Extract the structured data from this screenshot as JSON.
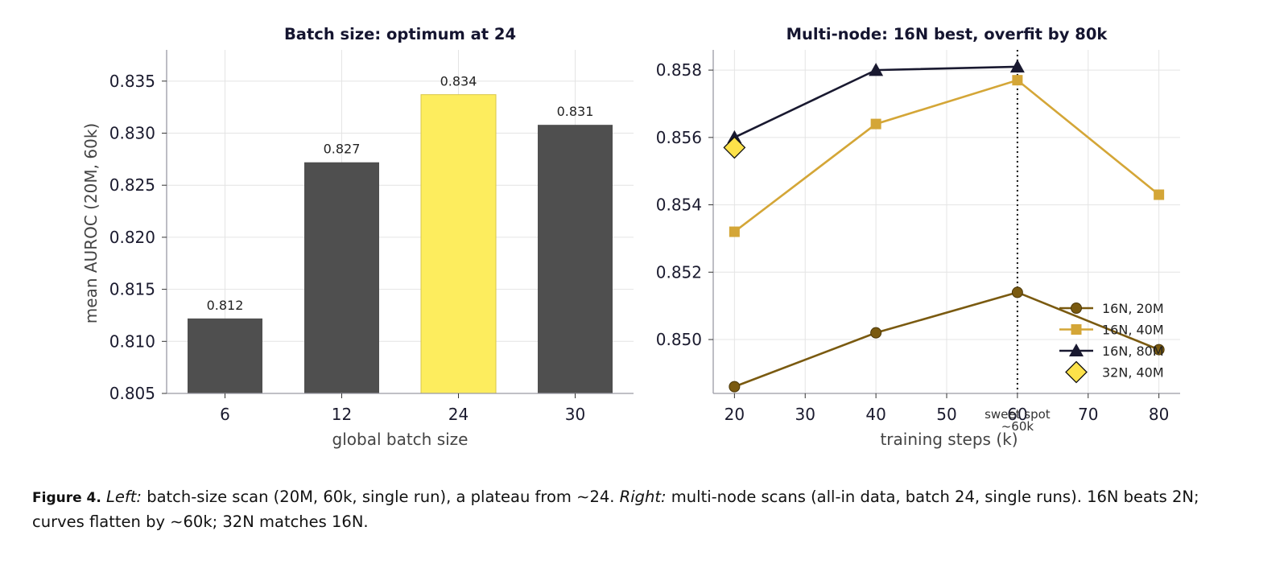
{
  "chart_data": [
    {
      "type": "bar",
      "title": "Batch size: optimum at 24",
      "xlabel": "global batch size",
      "ylabel": "mean AUROC (20M, 60k)",
      "categories": [
        "6",
        "12",
        "24",
        "30"
      ],
      "values": [
        0.8122,
        0.8272,
        0.8337,
        0.8308
      ],
      "value_labels": [
        "0.812",
        "0.827",
        "0.834",
        "0.831"
      ],
      "highlight_index": 2,
      "ylim": [
        0.805,
        0.838
      ],
      "yticks": [
        0.805,
        0.81,
        0.815,
        0.82,
        0.825,
        0.83,
        0.835
      ],
      "ytick_labels": [
        "0.805",
        "0.810",
        "0.815",
        "0.820",
        "0.825",
        "0.830",
        "0.835"
      ],
      "colors": {
        "bar": "#4f4f4f",
        "highlight": "#fded5e",
        "highlight_edge": "#d9c64a"
      },
      "grid": true
    },
    {
      "type": "line",
      "title": "Multi-node: 16N best, overfit by 80k",
      "xlabel": "training steps (k)",
      "ylabel": "",
      "xlim": [
        17,
        83
      ],
      "ylim": [
        0.8484,
        0.8586
      ],
      "xticks": [
        20,
        30,
        40,
        50,
        60,
        70,
        80
      ],
      "xtick_labels": [
        "20",
        "30",
        "40",
        "50",
        "60",
        "70",
        "80"
      ],
      "yticks": [
        0.85,
        0.852,
        0.854,
        0.856,
        0.858
      ],
      "ytick_labels": [
        "0.850",
        "0.852",
        "0.854",
        "0.856",
        "0.858"
      ],
      "series": [
        {
          "name": "16N, 20M",
          "x": [
            20,
            40,
            60,
            80
          ],
          "y": [
            0.8486,
            0.8502,
            0.8514,
            0.8497
          ],
          "color": "#7a5a10",
          "marker": "circle"
        },
        {
          "name": "16N, 40M",
          "x": [
            20,
            40,
            60,
            80
          ],
          "y": [
            0.8532,
            0.8564,
            0.8577,
            0.8543
          ],
          "color": "#d4a637",
          "marker": "square"
        },
        {
          "name": "16N, 80M",
          "x": [
            20,
            40,
            60
          ],
          "y": [
            0.856,
            0.858,
            0.8581
          ],
          "color": "#191930",
          "marker": "triangle"
        },
        {
          "name": "32N, 40M",
          "x": [
            20
          ],
          "y": [
            0.8557
          ],
          "color": "#fde24a",
          "marker": "diamond"
        }
      ],
      "vline": {
        "x": 60,
        "label_line1": "sweet spot",
        "label_line2": "~60k"
      },
      "legend_position": "lower-right",
      "grid": true
    }
  ],
  "caption": {
    "label": "Figure 4.",
    "left_tag": "Left:",
    "left_text": " batch-size scan (20M, 60k, single run), a plateau from ∼24. ",
    "right_tag": "Right:",
    "right_text": " multi-node scans (all-in data, batch 24, single runs).  16N beats 2N; curves flatten by ∼60k; 32N matches 16N."
  }
}
